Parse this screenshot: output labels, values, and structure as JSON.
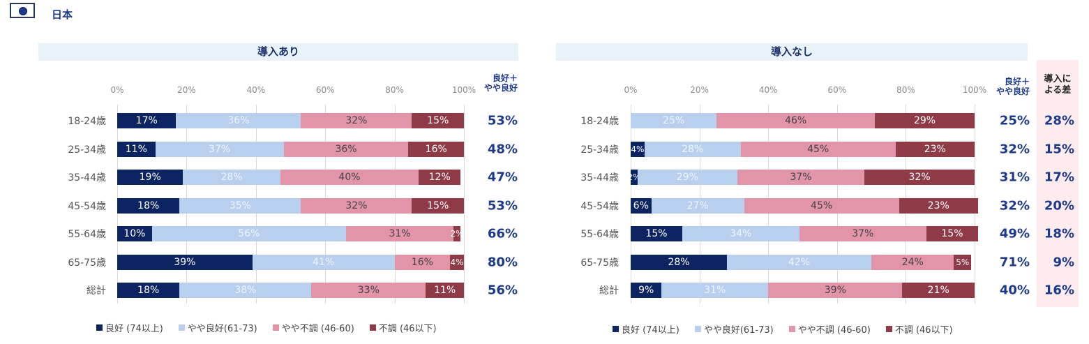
{
  "header": {
    "country": "日本",
    "flag_icon": "japan-flag-icon"
  },
  "colors": {
    "good": "#0c2461",
    "fairly_good": "#b8d0ee",
    "fairly_poor": "#e295a9",
    "poor": "#8f3b47",
    "accent_text": "#1d3a8a"
  },
  "chart_data": [
    {
      "type": "bar",
      "orientation": "horizontal-stacked-100",
      "title": "導入あり",
      "categories": [
        "18-24歳",
        "25-34歳",
        "35-44歳",
        "45-54歳",
        "55-64歳",
        "65-75歳",
        "総計"
      ],
      "xticks": [
        "0%",
        "20%",
        "40%",
        "60%",
        "80%",
        "100%"
      ],
      "xlim": [
        0,
        100
      ],
      "grid": true,
      "legend_position": "bottom",
      "series": [
        {
          "name": "良好 (74以上)",
          "values": [
            17,
            11,
            19,
            18,
            10,
            39,
            18
          ]
        },
        {
          "name": "やや良好(61-73)",
          "values": [
            36,
            37,
            28,
            35,
            56,
            41,
            38
          ]
        },
        {
          "name": "やや不調 (46-60)",
          "values": [
            32,
            36,
            40,
            32,
            31,
            16,
            33
          ]
        },
        {
          "name": "不調 (46以下)",
          "values": [
            15,
            16,
            12,
            15,
            2,
            4,
            11
          ]
        }
      ],
      "summary_header": "良好＋\nやや良好",
      "summary_values": [
        "53%",
        "48%",
        "47%",
        "53%",
        "66%",
        "80%",
        "56%"
      ]
    },
    {
      "type": "bar",
      "orientation": "horizontal-stacked-100",
      "title": "導入なし",
      "categories": [
        "18-24歳",
        "25-34歳",
        "35-44歳",
        "45-54歳",
        "55-64歳",
        "65-75歳",
        "総計"
      ],
      "xticks": [
        "0%",
        "20%",
        "40%",
        "60%",
        "80%",
        "100%"
      ],
      "xlim": [
        0,
        100
      ],
      "grid": true,
      "legend_position": "bottom",
      "series": [
        {
          "name": "良好 (74以上)",
          "values": [
            0,
            4,
            2,
            6,
            15,
            28,
            9
          ]
        },
        {
          "name": "やや良好(61-73)",
          "values": [
            25,
            28,
            29,
            27,
            34,
            42,
            31
          ]
        },
        {
          "name": "やや不調 (46-60)",
          "values": [
            46,
            45,
            37,
            45,
            37,
            24,
            39
          ]
        },
        {
          "name": "不調 (46以下)",
          "values": [
            29,
            23,
            32,
            23,
            15,
            5,
            21
          ]
        }
      ],
      "summary_header": "良好＋\nやや良好",
      "summary_values": [
        "25%",
        "32%",
        "31%",
        "32%",
        "49%",
        "71%",
        "40%"
      ],
      "diff_header": "導入に\nよる差",
      "diff_values": [
        "28%",
        "15%",
        "17%",
        "20%",
        "18%",
        "9%",
        "16%"
      ]
    }
  ]
}
